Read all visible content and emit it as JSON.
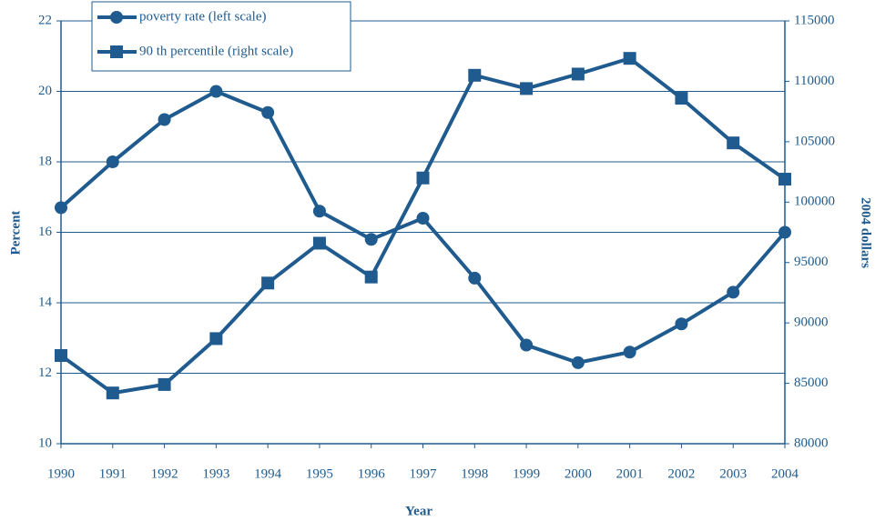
{
  "chart_data": {
    "type": "line",
    "xlabel": "Year",
    "ylabel": "Percent",
    "y2label": "2004 dollars",
    "categories": [
      "1990",
      "1991",
      "1992",
      "1993",
      "1994",
      "1995",
      "1996",
      "1997",
      "1998",
      "1999",
      "2000",
      "2001",
      "2002",
      "2003",
      "2004"
    ],
    "series": [
      {
        "name": "poverty rate (left scale)",
        "color": "#1f5b8e",
        "marker": "circle",
        "values": [
          16.7,
          18.0,
          19.2,
          20.0,
          19.4,
          16.6,
          15.8,
          16.4,
          14.7,
          12.8,
          12.3,
          12.6,
          13.4,
          14.3,
          16.0
        ]
      },
      {
        "name": "90 th percentile (right scale)",
        "color": "#1f5b8e",
        "marker": "square",
        "axis": "y2",
        "values": [
          87300,
          84200,
          84900,
          88700,
          93300,
          96600,
          93800,
          102000,
          110500,
          109400,
          110600,
          111900,
          108600,
          104900,
          101900
        ]
      }
    ],
    "ylim": [
      10,
      22
    ],
    "yticks": [
      10,
      12,
      14,
      16,
      18,
      20,
      22
    ],
    "y2lim": [
      80000,
      115000
    ],
    "y2ticks": [
      80000,
      85000,
      90000,
      95000,
      100000,
      105000,
      110000,
      115000
    ],
    "grid": true,
    "legend": "upper left"
  }
}
